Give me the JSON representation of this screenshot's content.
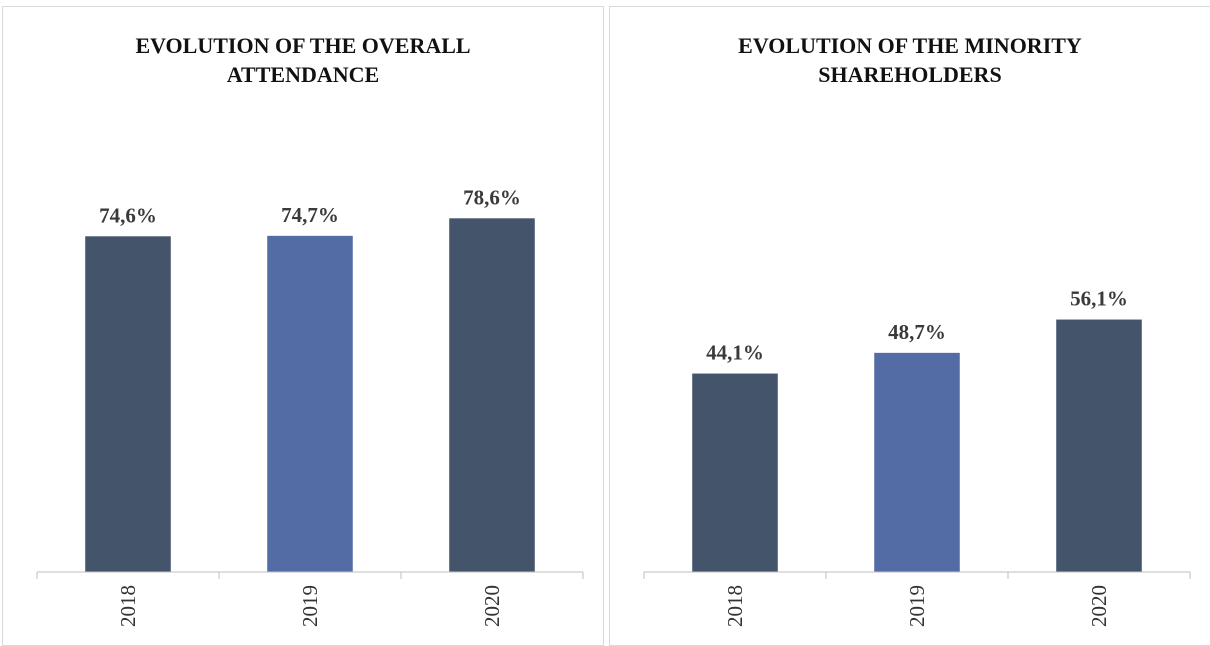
{
  "chart_data": [
    {
      "type": "bar",
      "title": "EVOLUTION OF THE OVERALL ATTENDANCE",
      "categories": [
        "2018",
        "2019",
        "2020"
      ],
      "values": [
        74.6,
        74.7,
        78.6
      ],
      "value_labels": [
        "74,6%",
        "74,7%",
        "78,6%"
      ],
      "colors": [
        "#44546a",
        "#546ca6",
        "#44546a"
      ],
      "ylim": [
        0,
        100
      ]
    },
    {
      "type": "bar",
      "title": "EVOLUTION OF THE MINORITY SHAREHOLDERS",
      "categories": [
        "2018",
        "2019",
        "2020"
      ],
      "values": [
        44.1,
        48.7,
        56.1
      ],
      "value_labels": [
        "44,1%",
        "48,7%",
        "56,1%"
      ],
      "colors": [
        "#44546a",
        "#546ca6",
        "#44546a"
      ],
      "ylim": [
        0,
        100
      ]
    }
  ]
}
